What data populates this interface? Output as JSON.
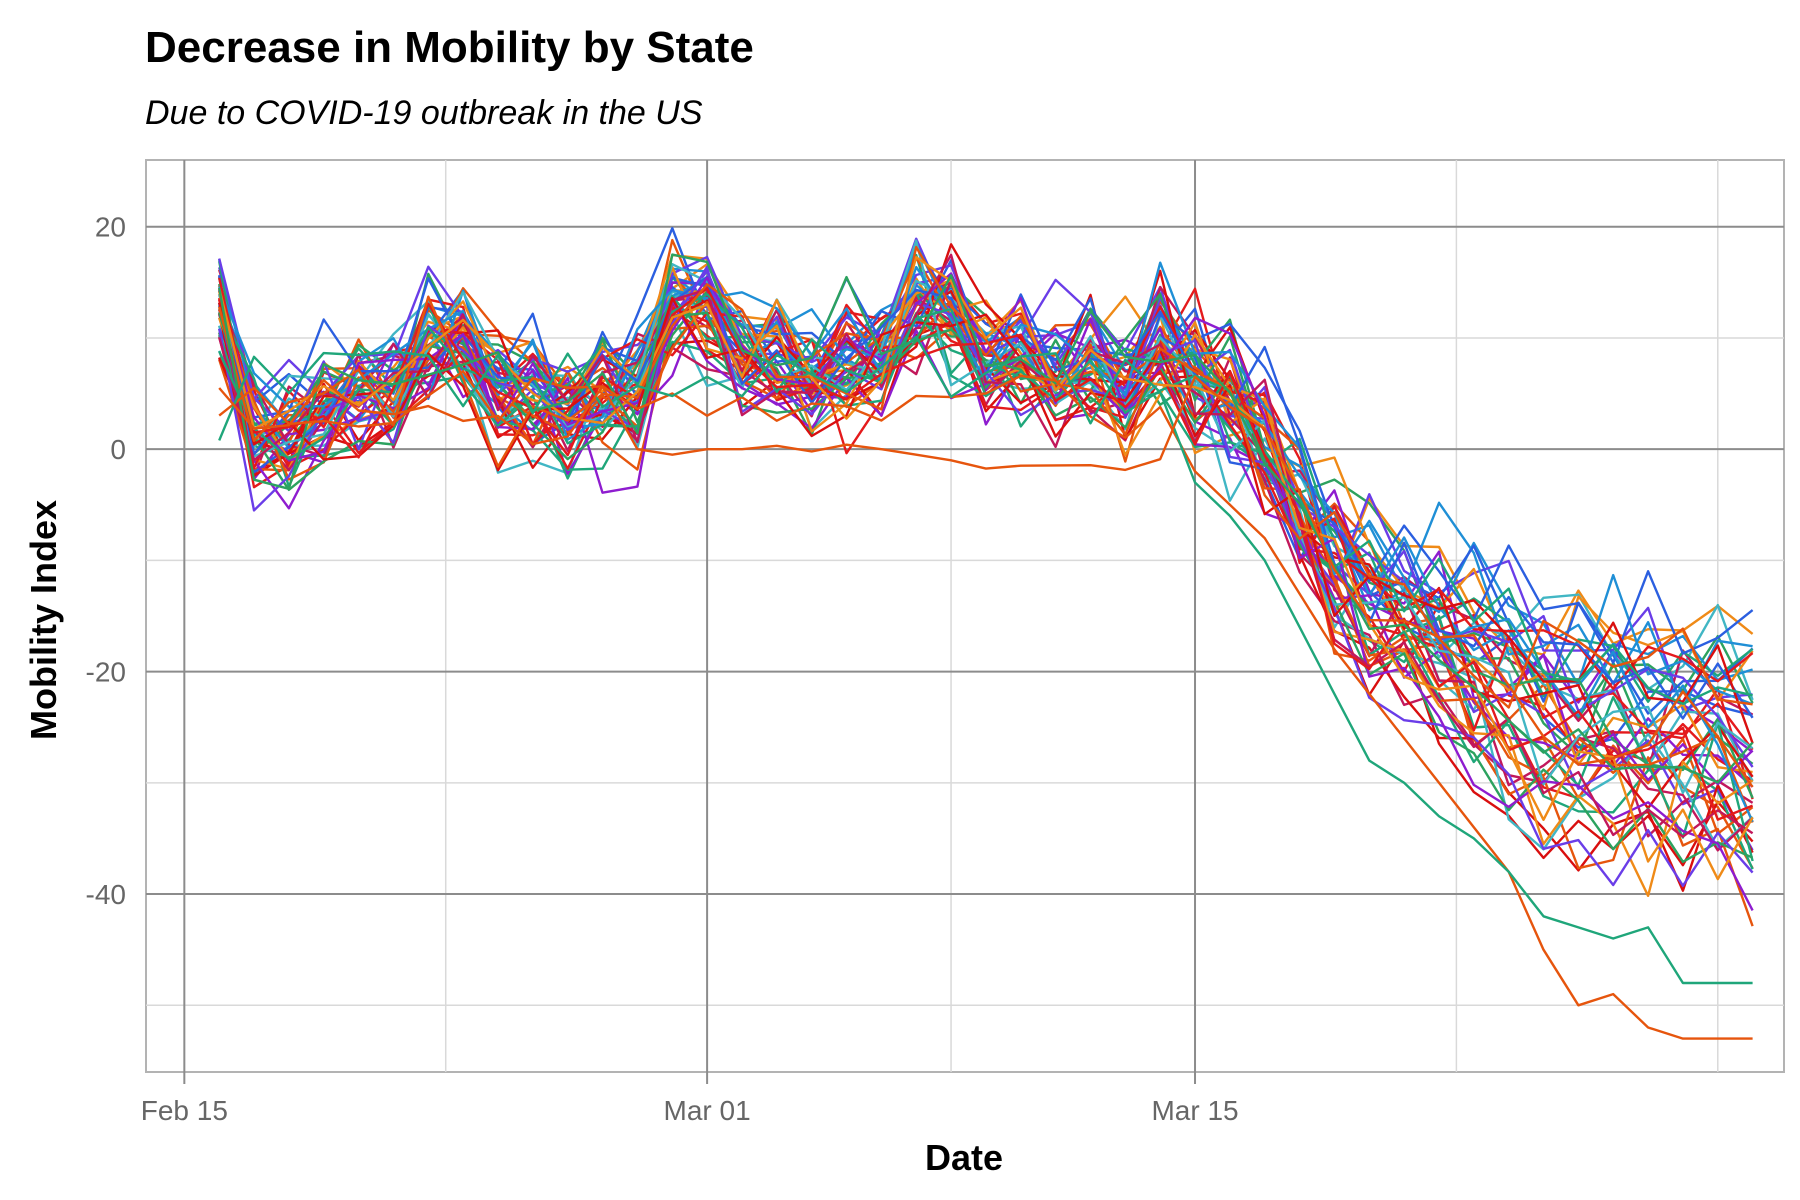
{
  "chart_data": {
    "type": "line",
    "title": "Decrease in Mobility by State",
    "subtitle": "Due to COVID-19 outbreak in the US",
    "xlabel": "Date",
    "ylabel": "Mobility Index",
    "x_ticks": [
      {
        "label": "Feb 15",
        "day": 15
      },
      {
        "label": "Mar 01",
        "day": 30
      },
      {
        "label": "Mar 15",
        "day": 44
      }
    ],
    "y_ticks": [
      20,
      0,
      -20,
      -40
    ],
    "xlim_days": [
      13.9,
      60.9
    ],
    "ylim": [
      -56,
      26
    ],
    "x_start": "2020-02-16",
    "x_end": "2020-03-31",
    "grid": true,
    "legend": "none",
    "series_count": 52,
    "palette": [
      "#e41a1c",
      "#e6550d",
      "#ef8a17",
      "#2ca25f",
      "#41b6c4",
      "#1f8fd6",
      "#2b5fe0",
      "#6a3de8",
      "#8e1ccf",
      "#c2185b",
      "#d90f0f",
      "#1fa67a"
    ],
    "phase_means": {
      "feb16_mar14": 5,
      "mar15": 6,
      "mar16": 4,
      "mar17": 1,
      "mar18": -5,
      "mar19": -10,
      "mar20": -13,
      "mar21": -14,
      "mar22": -16,
      "mar23": -19,
      "mar24": -21,
      "mar25": -23,
      "mar26": -24,
      "mar27": -24,
      "mar28": -24,
      "mar29": -24,
      "mar30": -25,
      "mar31": -27
    },
    "outliers": {
      "steep_drop": [
        -2,
        -5,
        -8,
        -13,
        -18,
        -22,
        -26,
        -30,
        -34,
        -38,
        -45,
        -50,
        -49,
        -52,
        -53
      ],
      "teal_drop": [
        -3,
        -6,
        -10,
        -16,
        -22,
        -28,
        -30,
        -33,
        -35,
        -38,
        -42,
        -43,
        -44,
        -43,
        -48
      ],
      "flat_segment_values": [
        0,
        -0.5,
        0,
        0,
        0.3,
        -0.2,
        0.4,
        0,
        -0.5,
        -1
      ]
    }
  }
}
